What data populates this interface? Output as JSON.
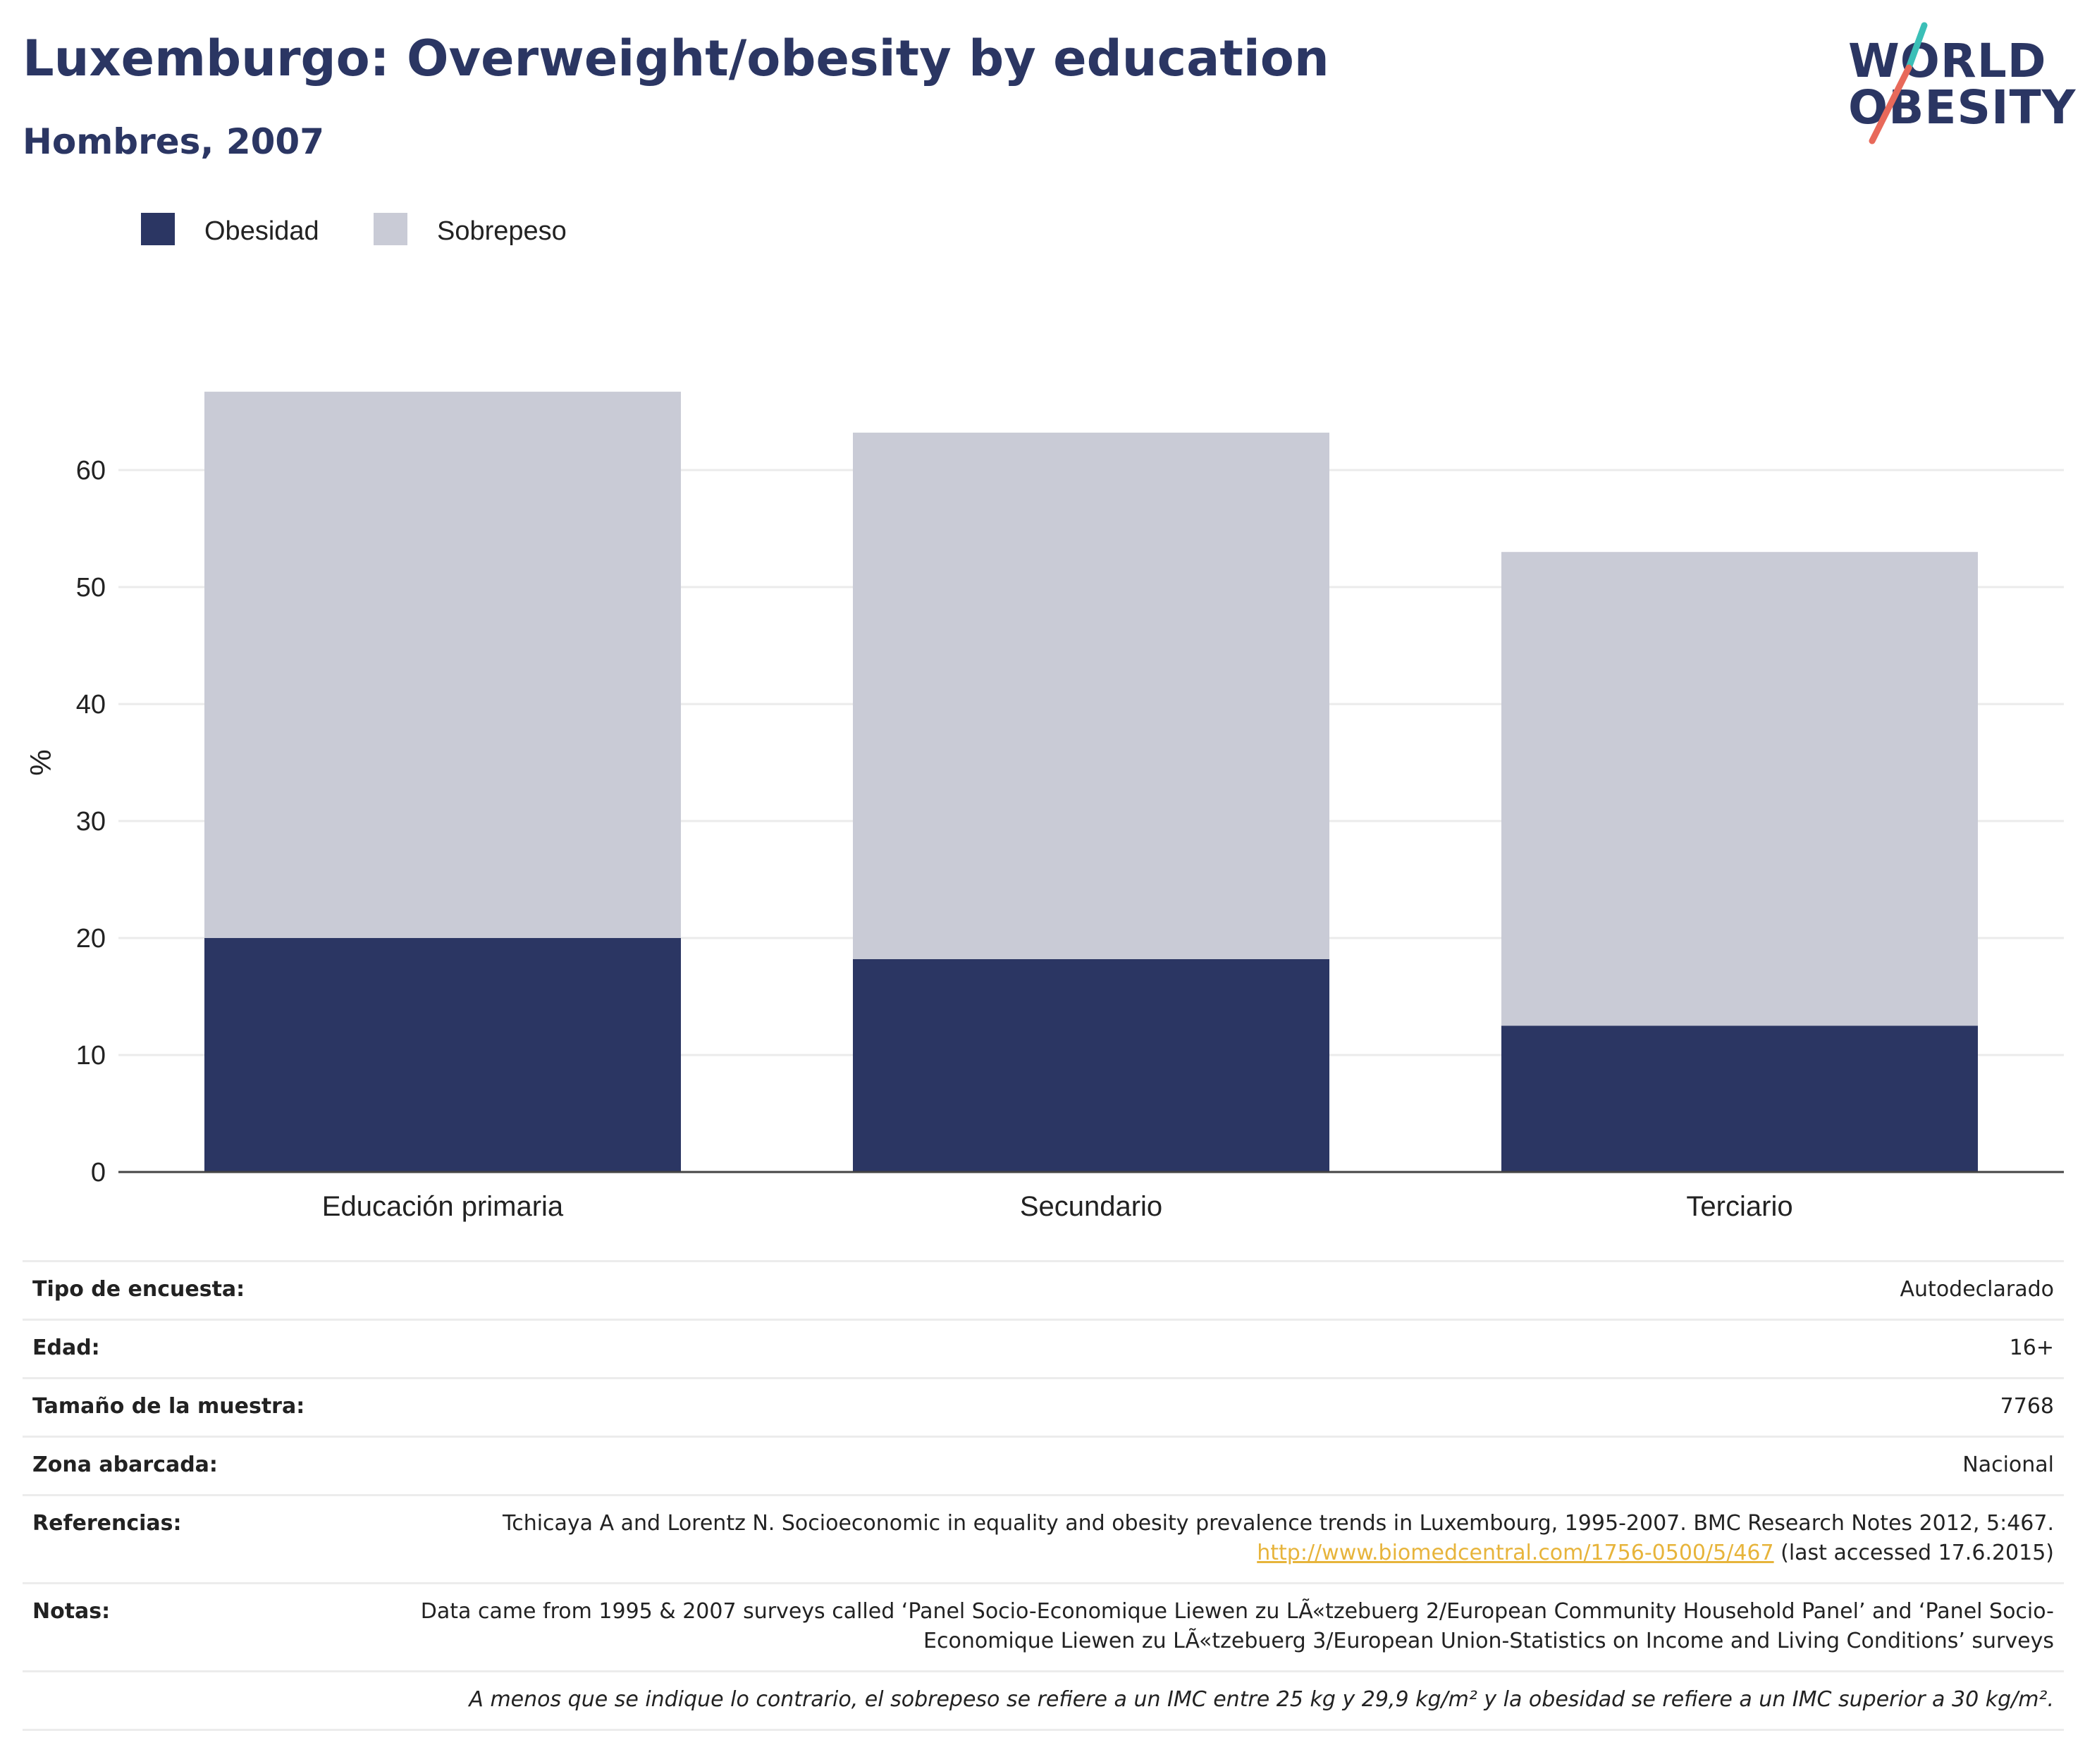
{
  "header": {
    "title": "Luxemburgo: Overweight/obesity by education",
    "subtitle": "Hombres, 2007"
  },
  "logo": {
    "line1": "WORLD",
    "line2": "OBESITY",
    "colors": {
      "navy": "#2b3663",
      "teal": "#3bbfb7",
      "coral": "#e8695a"
    }
  },
  "chart_data": {
    "type": "bar",
    "stacked": true,
    "categories": [
      "Educación primaria",
      "Secundario",
      "Terciario"
    ],
    "series": [
      {
        "name": "Obesidad",
        "color": "#2b3663",
        "values": [
          20.0,
          18.2,
          12.5
        ]
      },
      {
        "name": "Sobrepeso",
        "color": "#c9cbd6",
        "values": [
          46.7,
          45.0,
          40.5
        ]
      }
    ],
    "ylabel": "%",
    "ylim": [
      0,
      70
    ],
    "yticks": [
      0,
      10,
      20,
      30,
      40,
      50,
      60
    ],
    "grid": true,
    "legend_position": "top-left"
  },
  "info": [
    {
      "label": "Tipo de encuesta:",
      "value": "Autodeclarado"
    },
    {
      "label": "Edad:",
      "value": "16+"
    },
    {
      "label": "Tamaño de la muestra:",
      "value": "7768"
    },
    {
      "label": "Zona abarcada:",
      "value": "Nacional"
    },
    {
      "label": "Referencias:",
      "value": "Tchicaya A and Lorentz N. Socioeconomic in equality and obesity prevalence trends in Luxembourg, 1995-2007. BMC Research Notes 2012, 5:467.",
      "link": "http://www.biomedcentral.com/1756-0500/5/467",
      "after": "(last accessed 17.6.2015)"
    },
    {
      "label": "Notas:",
      "value": "Data came from 1995 & 2007 surveys called ‘Panel Socio-Economique Liewen zu LÃ«tzebuerg 2/European Community Household Panel’ and ‘Panel Socio-Economique Liewen zu LÃ«tzebuerg 3/European Union-Statistics on Income and Living Conditions’ surveys"
    }
  ],
  "footnote": "A menos que se indique lo contrario, el sobrepeso se refiere a un IMC entre 25 kg y 29,9 kg/m² y la obesidad se refiere a un IMC superior a 30 kg/m²."
}
